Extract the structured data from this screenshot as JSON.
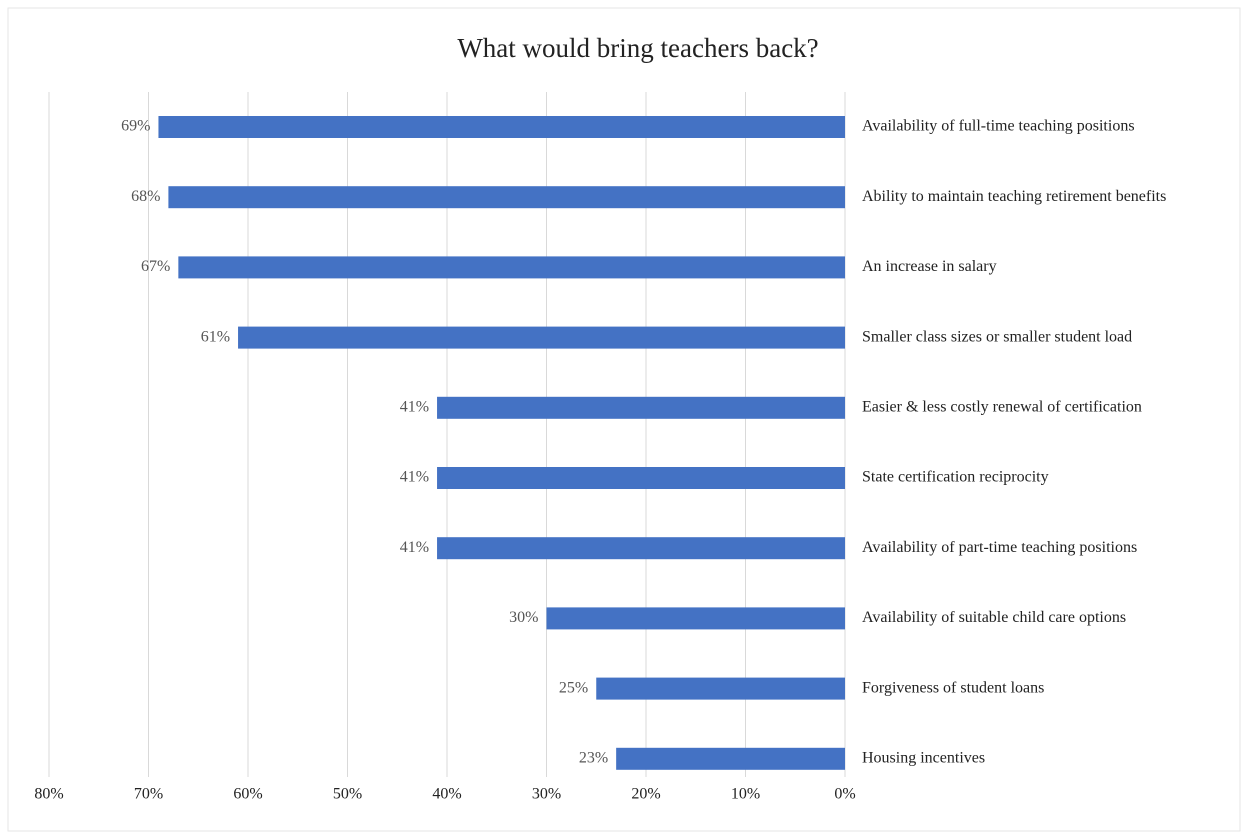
{
  "chart_data": {
    "type": "bar",
    "orientation": "horizontal",
    "x_direction": "reversed",
    "title": "What would bring teachers back?",
    "categories": [
      "Availability of full-time teaching positions",
      "Ability to maintain teaching retirement benefits",
      "An increase in salary",
      "Smaller class sizes or smaller student load",
      "Easier & less costly renewal of certification",
      "State certification reciprocity",
      "Availability of part-time teaching positions",
      "Availability of suitable child care options",
      "Forgiveness of student loans",
      "Housing incentives"
    ],
    "values": [
      69,
      68,
      67,
      61,
      41,
      41,
      41,
      30,
      25,
      23
    ],
    "data_labels": [
      "69%",
      "68%",
      "67%",
      "61%",
      "41%",
      "41%",
      "41%",
      "30%",
      "25%",
      "23%"
    ],
    "x_ticks": [
      "80%",
      "70%",
      "60%",
      "50%",
      "40%",
      "30%",
      "20%",
      "10%",
      "0%"
    ],
    "x_tick_values": [
      80,
      70,
      60,
      50,
      40,
      30,
      20,
      10,
      0
    ],
    "xlim": [
      0,
      80
    ],
    "grid": true,
    "legend": "none",
    "xlabel": "",
    "ylabel": "",
    "colors": {
      "bar": "#4472C4",
      "grid": "#D9D9D9",
      "frame": "#E6E6E6"
    }
  }
}
